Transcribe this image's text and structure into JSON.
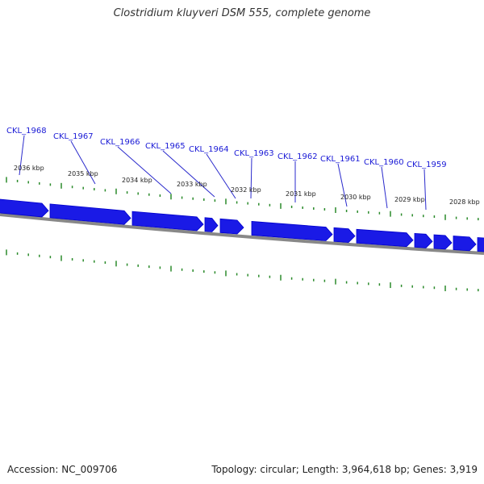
{
  "title": "Clostridium kluyveri DSM 555, complete genome",
  "footer": {
    "accession": "Accession: NC_009706",
    "summary": "Topology: circular; Length: 3,964,618 bp; Genes: 3,919"
  },
  "colors": {
    "gene_fill": "#1a1ae6",
    "gene_stroke": "#0000cc",
    "gene_label": "#1a1ad6",
    "callout_line": "#2a2acc",
    "backbone": "#888888",
    "tick": "#2a8a2a"
  },
  "genes": [
    {
      "label": "CKL_1968"
    },
    {
      "label": "CKL_1967"
    },
    {
      "label": "CKL_1966"
    },
    {
      "label": "CKL_1965"
    },
    {
      "label": "CKL_1964"
    },
    {
      "label": "CKL_1963"
    },
    {
      "label": "CKL_1962"
    },
    {
      "label": "CKL_1961"
    },
    {
      "label": "CKL_1960"
    },
    {
      "label": "CKL_1959"
    }
  ],
  "kbp_labels": [
    "2036 kbp",
    "2035 kbp",
    "2034 kbp",
    "2033 kbp",
    "2032 kbp",
    "2031 kbp",
    "2030 kbp",
    "2029 kbp",
    "2028 kbp"
  ]
}
